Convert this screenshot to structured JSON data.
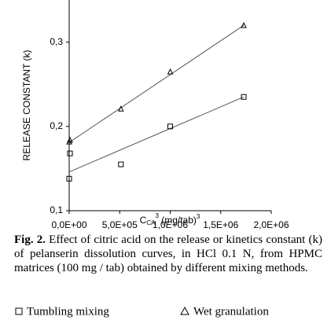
{
  "chart_data": {
    "type": "scatter",
    "y_label": "RELEASE CONSTANT (k)",
    "x_label": {
      "base": "C",
      "sub": "CA",
      "sup": "3",
      "rest": " (mg/tab)",
      "sup2": "3"
    },
    "xlim": [
      0,
      2000000
    ],
    "ylim": [
      0.1,
      0.35
    ],
    "xticks": [
      {
        "value": 0,
        "label": "0,0E+00"
      },
      {
        "value": 500000,
        "label": "5,0E+05"
      },
      {
        "value": 1000000,
        "label": "1,0E+06"
      },
      {
        "value": 1500000,
        "label": "1,5E+06"
      },
      {
        "value": 2000000,
        "label": "2,0E+06"
      }
    ],
    "yticks": [
      {
        "value": 0.1,
        "label": "0,1"
      },
      {
        "value": 0.2,
        "label": "0,2"
      },
      {
        "value": 0.3,
        "label": "0,3"
      }
    ],
    "series": [
      {
        "name": "Tumbling mixing",
        "marker": "square",
        "color": "#000000",
        "x": [
          0,
          8000,
          512000,
          1000000,
          1728000
        ],
        "values": [
          0.138,
          0.168,
          0.155,
          0.2,
          0.235
        ],
        "trendline": {
          "x": [
            0,
            1728000
          ],
          "values": [
            0.146,
            0.235
          ]
        }
      },
      {
        "name": "Wet granulation",
        "marker": "triangle",
        "color": "#000000",
        "x": [
          0,
          8000,
          512000,
          1000000,
          1728000
        ],
        "values": [
          0.182,
          0.184,
          0.221,
          0.265,
          0.32
        ],
        "trendline": {
          "x": [
            0,
            1728000
          ],
          "values": [
            0.181,
            0.32
          ]
        }
      }
    ],
    "caption": {
      "label": "Fig. 2.",
      "text": " Effect of citric acid on the release or kinetics constant (k) of pelanserin dissolution curves, in HCl 0.1 N, from HPMC matrices (100 mg / tab) obtained by different mixing methods."
    }
  }
}
